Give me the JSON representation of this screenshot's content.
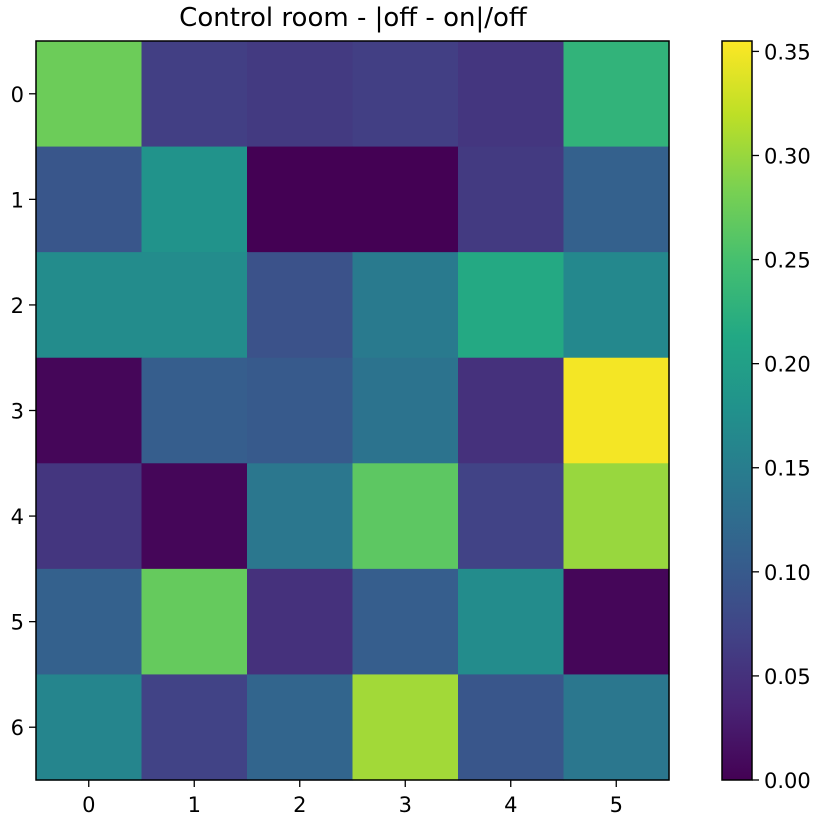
{
  "chart_data": {
    "type": "heatmap",
    "title": "Control room - |off - on|/off",
    "x_ticks": [
      "0",
      "1",
      "2",
      "3",
      "4",
      "5"
    ],
    "y_ticks": [
      "0",
      "1",
      "2",
      "3",
      "4",
      "5",
      "6"
    ],
    "values": [
      [
        0.275,
        0.065,
        0.06,
        0.065,
        0.055,
        0.23
      ],
      [
        0.095,
        0.18,
        0.0,
        0.0,
        0.06,
        0.11
      ],
      [
        0.17,
        0.17,
        0.09,
        0.145,
        0.215,
        0.165
      ],
      [
        0.005,
        0.105,
        0.1,
        0.135,
        0.05,
        0.35
      ],
      [
        0.055,
        0.005,
        0.14,
        0.265,
        0.07,
        0.3
      ],
      [
        0.11,
        0.27,
        0.05,
        0.105,
        0.17,
        0.005
      ],
      [
        0.16,
        0.07,
        0.115,
        0.305,
        0.095,
        0.14
      ]
    ],
    "colormap": "viridis",
    "vmin": 0.0,
    "vmax": 0.355,
    "colorbar_ticks": [
      "0.00",
      "0.05",
      "0.10",
      "0.15",
      "0.20",
      "0.25",
      "0.30",
      "0.35"
    ]
  }
}
